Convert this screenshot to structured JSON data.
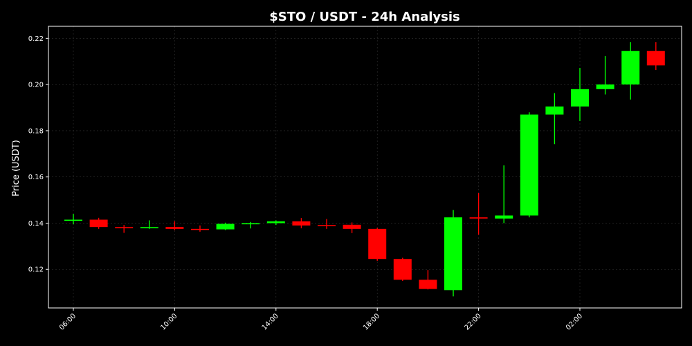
{
  "chart_data": {
    "type": "candlestick",
    "title": "$STO / USDT - 24h Analysis",
    "xlabel": "",
    "ylabel": "Price (USDT)",
    "ylim": [
      0.1033,
      0.2252
    ],
    "grid": true,
    "colors": {
      "up": "#00ff00",
      "down": "#ff0000",
      "background": "#000000",
      "axis": "#ffffff",
      "grid": "#333333"
    },
    "y_ticks": [
      "0.12",
      "0.14",
      "0.16",
      "0.18",
      "0.20",
      "0.22"
    ],
    "x_ticks": [
      {
        "label": "06:00",
        "index": 0
      },
      {
        "label": "10:00",
        "index": 4
      },
      {
        "label": "14:00",
        "index": 8
      },
      {
        "label": "18:00",
        "index": 12
      },
      {
        "label": "22:00",
        "index": 16
      },
      {
        "label": "02:00",
        "index": 20
      }
    ],
    "candles": [
      {
        "time": "06:00",
        "open": 0.141,
        "high": 0.144,
        "low": 0.1395,
        "close": 0.1415
      },
      {
        "time": "07:00",
        "open": 0.1415,
        "high": 0.1423,
        "low": 0.1375,
        "close": 0.1383
      },
      {
        "time": "08:00",
        "open": 0.1383,
        "high": 0.1392,
        "low": 0.1358,
        "close": 0.138
      },
      {
        "time": "09:00",
        "open": 0.138,
        "high": 0.1412,
        "low": 0.1375,
        "close": 0.1383
      },
      {
        "time": "10:00",
        "open": 0.1383,
        "high": 0.1408,
        "low": 0.137,
        "close": 0.1375
      },
      {
        "time": "11:00",
        "open": 0.1375,
        "high": 0.139,
        "low": 0.1363,
        "close": 0.1373
      },
      {
        "time": "12:00",
        "open": 0.1373,
        "high": 0.1402,
        "low": 0.137,
        "close": 0.1397
      },
      {
        "time": "13:00",
        "open": 0.1395,
        "high": 0.1405,
        "low": 0.1377,
        "close": 0.14
      },
      {
        "time": "14:00",
        "open": 0.14,
        "high": 0.1412,
        "low": 0.1392,
        "close": 0.1408
      },
      {
        "time": "15:00",
        "open": 0.1408,
        "high": 0.1422,
        "low": 0.1378,
        "close": 0.139
      },
      {
        "time": "16:00",
        "open": 0.1392,
        "high": 0.1418,
        "low": 0.1375,
        "close": 0.139
      },
      {
        "time": "17:00",
        "open": 0.1393,
        "high": 0.1403,
        "low": 0.1357,
        "close": 0.1375
      },
      {
        "time": "18:00",
        "open": 0.1375,
        "high": 0.138,
        "low": 0.1237,
        "close": 0.1245
      },
      {
        "time": "19:00",
        "open": 0.1245,
        "high": 0.125,
        "low": 0.115,
        "close": 0.1155
      },
      {
        "time": "20:00",
        "open": 0.1155,
        "high": 0.1197,
        "low": 0.1113,
        "close": 0.1115
      },
      {
        "time": "21:00",
        "open": 0.111,
        "high": 0.1457,
        "low": 0.1083,
        "close": 0.1425
      },
      {
        "time": "22:00",
        "open": 0.1425,
        "high": 0.153,
        "low": 0.135,
        "close": 0.142
      },
      {
        "time": "23:00",
        "open": 0.142,
        "high": 0.165,
        "low": 0.14,
        "close": 0.1433
      },
      {
        "time": "00:00",
        "open": 0.1433,
        "high": 0.188,
        "low": 0.1425,
        "close": 0.187
      },
      {
        "time": "01:00",
        "open": 0.187,
        "high": 0.1963,
        "low": 0.1742,
        "close": 0.1905
      },
      {
        "time": "02:00",
        "open": 0.1905,
        "high": 0.2072,
        "low": 0.1842,
        "close": 0.198
      },
      {
        "time": "03:00",
        "open": 0.198,
        "high": 0.2123,
        "low": 0.1957,
        "close": 0.2
      },
      {
        "time": "04:00",
        "open": 0.2,
        "high": 0.2183,
        "low": 0.1935,
        "close": 0.2145
      },
      {
        "time": "05:00",
        "open": 0.2145,
        "high": 0.2183,
        "low": 0.2063,
        "close": 0.2083
      }
    ]
  }
}
